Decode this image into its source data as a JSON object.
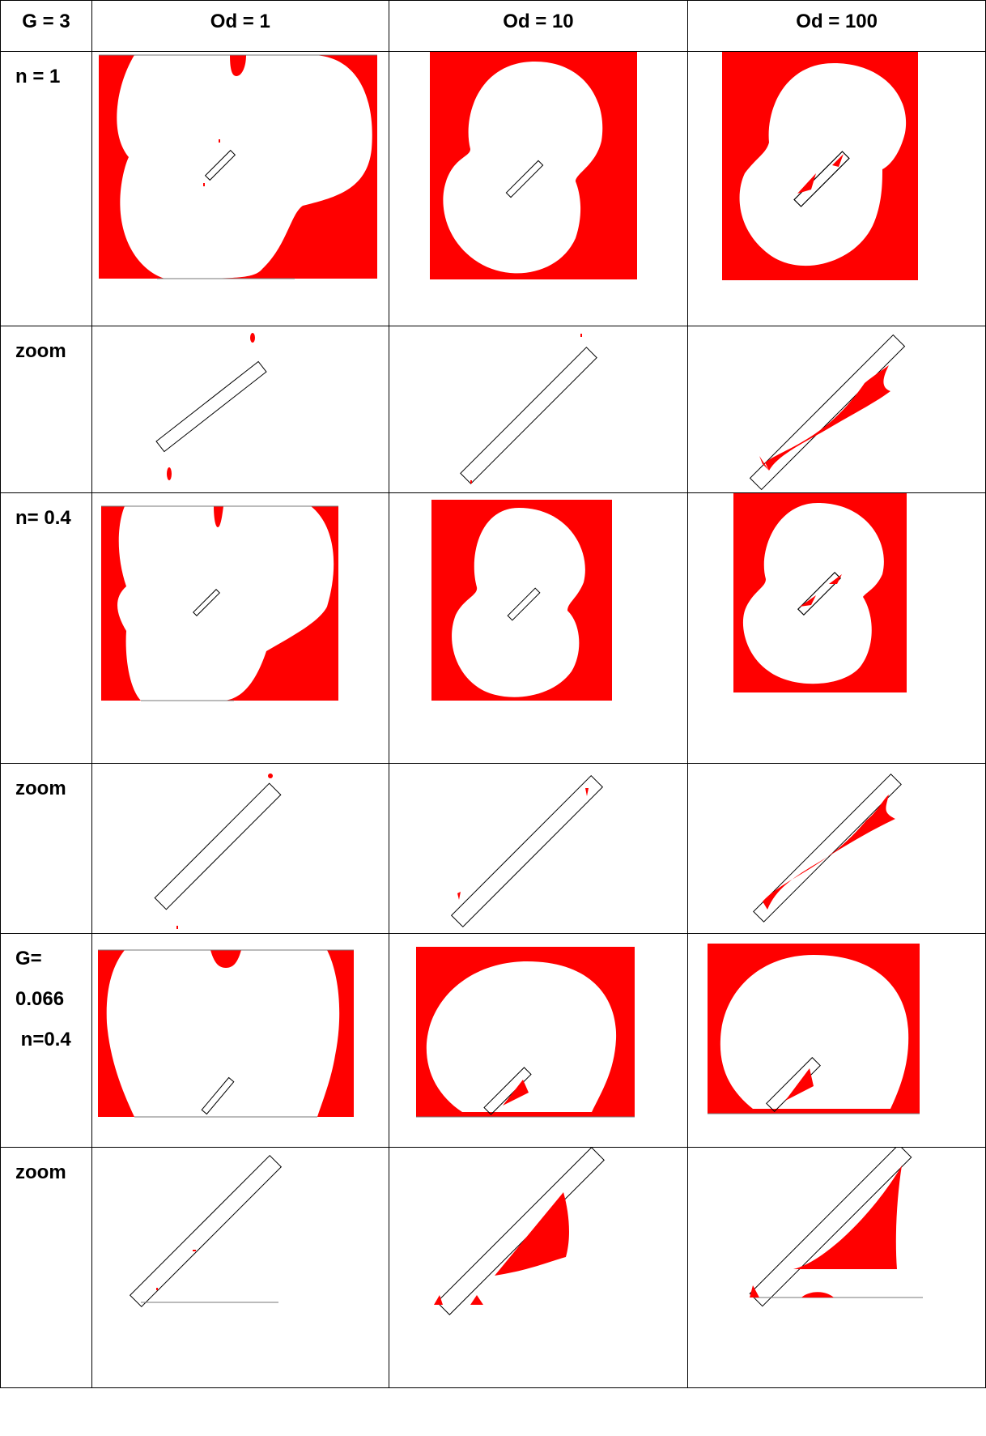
{
  "header": {
    "corner": "G = 3",
    "columns": [
      "Od = 1",
      "Od = 10",
      "Od = 100"
    ]
  },
  "rows": [
    {
      "label_lines": [
        "n = 1"
      ]
    },
    {
      "label_lines": [
        "zoom"
      ]
    },
    {
      "label_lines": [
        "n= 0.4"
      ]
    },
    {
      "label_lines": [
        "zoom"
      ]
    },
    {
      "label_lines": [
        "G=",
        "0.066",
        " n=0.4"
      ]
    },
    {
      "label_lines": [
        "zoom"
      ]
    }
  ],
  "colors": {
    "fluid": "#ff0000",
    "background": "#ffffff",
    "outline": "#000000"
  }
}
